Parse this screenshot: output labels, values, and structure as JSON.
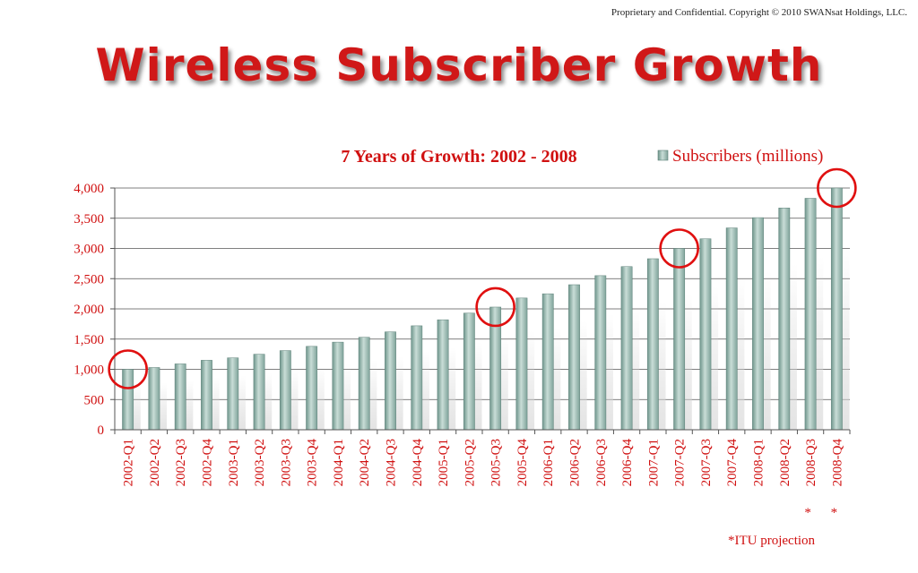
{
  "slide": {
    "copyright": "Proprietary and Confidential. Copyright © 2010 SWANsat Holdings, LLC.",
    "title": "Wireless Subscriber Growth",
    "footnote": "*ITU projection"
  },
  "chart_data": {
    "type": "bar",
    "title": "7 Years of Growth:  2002 - 2008",
    "xlabel": "",
    "ylabel": "",
    "ylim": [
      0,
      4000
    ],
    "yticks": [
      0,
      500,
      1000,
      1500,
      2000,
      2500,
      3000,
      3500,
      4000
    ],
    "ytick_labels": [
      "0",
      "500",
      "1,000",
      "1,500",
      "2,000",
      "2,500",
      "3,000",
      "3,500",
      "4,000"
    ],
    "grid": true,
    "legend_position": "top-right",
    "categories": [
      "2002-Q1",
      "2002-Q2",
      "2002-Q3",
      "2002-Q4",
      "2003-Q1",
      "2003-Q2",
      "2003-Q3",
      "2003-Q4",
      "2004-Q1",
      "2004-Q2",
      "2004-Q3",
      "2004-Q4",
      "2005-Q1",
      "2005-Q2",
      "2005-Q3",
      "2005-Q4",
      "2006-Q1",
      "2006-Q2",
      "2006-Q3",
      "2006-Q4",
      "2007-Q1",
      "2007-Q2",
      "2007-Q3",
      "2007-Q4",
      "2008-Q1",
      "2008-Q2",
      "2008-Q3",
      "2008-Q4"
    ],
    "series": [
      {
        "name": "Subscribers (millions)",
        "color": "#8fb3aa",
        "values": [
          1000,
          1030,
          1090,
          1150,
          1190,
          1250,
          1310,
          1380,
          1450,
          1530,
          1620,
          1720,
          1820,
          1930,
          2030,
          2180,
          2250,
          2400,
          2550,
          2700,
          2830,
          3000,
          3160,
          3340,
          3510,
          3670,
          3830,
          4000
        ]
      }
    ],
    "projection_marker": "*",
    "projected_categories": [
      "2008-Q3",
      "2008-Q4"
    ],
    "highlighted_categories": [
      "2002-Q1",
      "2005-Q3",
      "2007-Q2",
      "2008-Q4"
    ],
    "highlight_color": "#e01010",
    "label_color": "#d01010"
  }
}
